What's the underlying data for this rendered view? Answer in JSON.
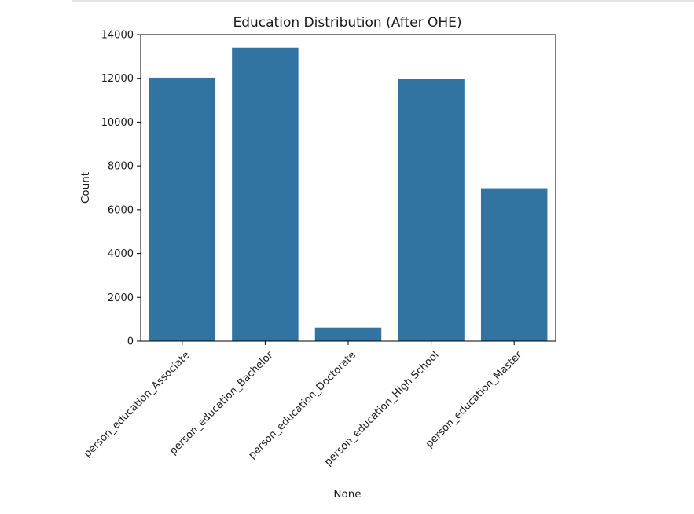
{
  "chart_data": {
    "type": "bar",
    "title": "Education Distribution (After OHE)",
    "xlabel": "None",
    "ylabel": "Count",
    "categories": [
      "person_education_Associate",
      "person_education_Bachelor",
      "person_education_Doctorate",
      "person_education_High School",
      "person_education_Master"
    ],
    "values": [
      12028,
      13399,
      621,
      11972,
      6980
    ],
    "ylim": [
      0,
      14000
    ],
    "yticks": [
      0,
      2000,
      4000,
      6000,
      8000,
      10000,
      12000,
      14000
    ],
    "grid": false,
    "legend": "none",
    "bar_color": "#3274a1"
  }
}
